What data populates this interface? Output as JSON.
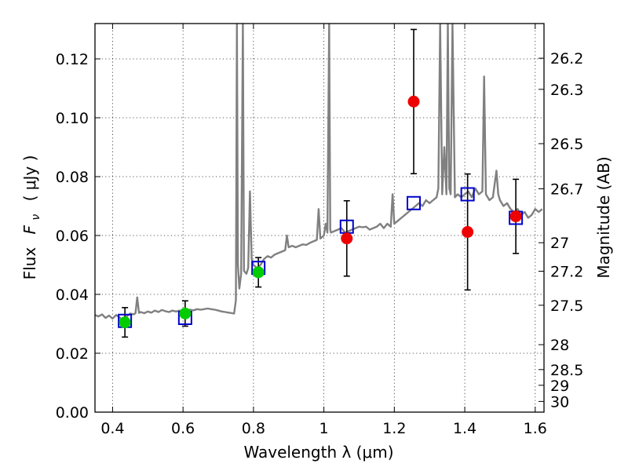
{
  "chart_data": {
    "type": "scatter",
    "xlabel": "Wavelength  λ (μm)",
    "ylabel_main": "Flux",
    "ylabel_symbol": "F",
    "ylabel_subscript": "ν",
    "ylabel_unit": "( μJy )",
    "y2label": "Magnitude (AB)",
    "xlim": [
      0.35,
      1.625
    ],
    "ylim": [
      0.0,
      0.132
    ],
    "grid": true,
    "x_ticks": [
      {
        "value": 0.4,
        "label": "0.4"
      },
      {
        "value": 0.6,
        "label": "0.6"
      },
      {
        "value": 0.8,
        "label": "0.8"
      },
      {
        "value": 1.0,
        "label": "1"
      },
      {
        "value": 1.2,
        "label": "1.2"
      },
      {
        "value": 1.4,
        "label": "1.4"
      },
      {
        "value": 1.6,
        "label": "1.6"
      }
    ],
    "y_ticks": [
      {
        "value": 0.0,
        "label": "0.00"
      },
      {
        "value": 0.02,
        "label": "0.02"
      },
      {
        "value": 0.04,
        "label": "0.04"
      },
      {
        "value": 0.06,
        "label": "0.06"
      },
      {
        "value": 0.08,
        "label": "0.08"
      },
      {
        "value": 0.1,
        "label": "0.10"
      },
      {
        "value": 0.12,
        "label": "0.12"
      }
    ],
    "mag_ticks": [
      {
        "value": 26.2,
        "label": "26.2"
      },
      {
        "value": 26.3,
        "label": "26.3"
      },
      {
        "value": 26.5,
        "label": "26.5"
      },
      {
        "value": 26.7,
        "label": "26.7"
      },
      {
        "value": 27.0,
        "label": "27"
      },
      {
        "value": 27.2,
        "label": "27.2"
      },
      {
        "value": 27.5,
        "label": "27.5"
      },
      {
        "value": 28.0,
        "label": "28"
      },
      {
        "value": 28.5,
        "label": "28.5"
      },
      {
        "value": 29.0,
        "label": "29"
      },
      {
        "value": 30.0,
        "label": "30"
      }
    ],
    "model_spectrum": {
      "color": "#808080",
      "points": [
        [
          0.35,
          0.033
        ],
        [
          0.36,
          0.0325
        ],
        [
          0.37,
          0.0332
        ],
        [
          0.38,
          0.032
        ],
        [
          0.39,
          0.0328
        ],
        [
          0.4,
          0.0318
        ],
        [
          0.41,
          0.033
        ],
        [
          0.42,
          0.0322
        ],
        [
          0.43,
          0.0305
        ],
        [
          0.44,
          0.0325
        ],
        [
          0.45,
          0.0335
        ],
        [
          0.46,
          0.0332
        ],
        [
          0.465,
          0.0336
        ],
        [
          0.47,
          0.039
        ],
        [
          0.475,
          0.0337
        ],
        [
          0.48,
          0.034
        ],
        [
          0.49,
          0.0336
        ],
        [
          0.5,
          0.0342
        ],
        [
          0.51,
          0.0338
        ],
        [
          0.52,
          0.0345
        ],
        [
          0.53,
          0.034
        ],
        [
          0.54,
          0.0347
        ],
        [
          0.55,
          0.0343
        ],
        [
          0.56,
          0.034
        ],
        [
          0.57,
          0.0345
        ],
        [
          0.58,
          0.0342
        ],
        [
          0.59,
          0.0345
        ],
        [
          0.6,
          0.033
        ],
        [
          0.61,
          0.0345
        ],
        [
          0.62,
          0.0348
        ],
        [
          0.63,
          0.0346
        ],
        [
          0.64,
          0.035
        ],
        [
          0.65,
          0.0348
        ],
        [
          0.66,
          0.035
        ],
        [
          0.67,
          0.0352
        ],
        [
          0.68,
          0.035
        ],
        [
          0.69,
          0.0348
        ],
        [
          0.7,
          0.0345
        ],
        [
          0.71,
          0.0342
        ],
        [
          0.72,
          0.034
        ],
        [
          0.73,
          0.0338
        ],
        [
          0.74,
          0.0336
        ],
        [
          0.745,
          0.0335
        ],
        [
          0.75,
          0.038
        ],
        [
          0.753,
          0.132
        ],
        [
          0.756,
          0.05
        ],
        [
          0.76,
          0.042
        ],
        [
          0.765,
          0.047
        ],
        [
          0.77,
          0.132
        ],
        [
          0.773,
          0.048
        ],
        [
          0.78,
          0.047
        ],
        [
          0.785,
          0.049
        ],
        [
          0.79,
          0.075
        ],
        [
          0.795,
          0.052
        ],
        [
          0.8,
          0.05
        ],
        [
          0.81,
          0.049
        ],
        [
          0.82,
          0.05
        ],
        [
          0.83,
          0.052
        ],
        [
          0.84,
          0.053
        ],
        [
          0.85,
          0.0525
        ],
        [
          0.86,
          0.0535
        ],
        [
          0.87,
          0.054
        ],
        [
          0.88,
          0.0545
        ],
        [
          0.89,
          0.055
        ],
        [
          0.895,
          0.06
        ],
        [
          0.9,
          0.056
        ],
        [
          0.91,
          0.0565
        ],
        [
          0.92,
          0.056
        ],
        [
          0.93,
          0.0565
        ],
        [
          0.94,
          0.057
        ],
        [
          0.95,
          0.0568
        ],
        [
          0.96,
          0.0575
        ],
        [
          0.97,
          0.058
        ],
        [
          0.98,
          0.0585
        ],
        [
          0.985,
          0.069
        ],
        [
          0.99,
          0.059
        ],
        [
          1.0,
          0.06
        ],
        [
          1.005,
          0.064
        ],
        [
          1.01,
          0.061
        ],
        [
          1.015,
          0.132
        ],
        [
          1.018,
          0.062
        ],
        [
          1.02,
          0.061
        ],
        [
          1.03,
          0.0615
        ],
        [
          1.04,
          0.062
        ],
        [
          1.05,
          0.0625
        ],
        [
          1.06,
          0.061
        ],
        [
          1.07,
          0.0615
        ],
        [
          1.08,
          0.062
        ],
        [
          1.09,
          0.0625
        ],
        [
          1.1,
          0.063
        ],
        [
          1.11,
          0.0628
        ],
        [
          1.12,
          0.063
        ],
        [
          1.13,
          0.062
        ],
        [
          1.14,
          0.0625
        ],
        [
          1.15,
          0.063
        ],
        [
          1.16,
          0.064
        ],
        [
          1.17,
          0.0625
        ],
        [
          1.18,
          0.064
        ],
        [
          1.19,
          0.063
        ],
        [
          1.195,
          0.074
        ],
        [
          1.2,
          0.064
        ],
        [
          1.21,
          0.065
        ],
        [
          1.22,
          0.066
        ],
        [
          1.23,
          0.067
        ],
        [
          1.24,
          0.068
        ],
        [
          1.25,
          0.069
        ],
        [
          1.26,
          0.07
        ],
        [
          1.27,
          0.071
        ],
        [
          1.28,
          0.07
        ],
        [
          1.29,
          0.072
        ],
        [
          1.3,
          0.071
        ],
        [
          1.31,
          0.072
        ],
        [
          1.32,
          0.073
        ],
        [
          1.325,
          0.076
        ],
        [
          1.33,
          0.132
        ],
        [
          1.336,
          0.074
        ],
        [
          1.342,
          0.09
        ],
        [
          1.348,
          0.074
        ],
        [
          1.352,
          0.132
        ],
        [
          1.356,
          0.076
        ],
        [
          1.36,
          0.074
        ],
        [
          1.365,
          0.132
        ],
        [
          1.372,
          0.073
        ],
        [
          1.38,
          0.074
        ],
        [
          1.39,
          0.073
        ],
        [
          1.4,
          0.074
        ],
        [
          1.41,
          0.075
        ],
        [
          1.42,
          0.073
        ],
        [
          1.43,
          0.076
        ],
        [
          1.44,
          0.074
        ],
        [
          1.45,
          0.075
        ],
        [
          1.455,
          0.114
        ],
        [
          1.46,
          0.074
        ],
        [
          1.47,
          0.072
        ],
        [
          1.48,
          0.073
        ],
        [
          1.49,
          0.082
        ],
        [
          1.495,
          0.074
        ],
        [
          1.5,
          0.072
        ],
        [
          1.51,
          0.07
        ],
        [
          1.52,
          0.071
        ],
        [
          1.53,
          0.069
        ],
        [
          1.54,
          0.068
        ],
        [
          1.55,
          0.069
        ],
        [
          1.56,
          0.067
        ],
        [
          1.57,
          0.068
        ],
        [
          1.58,
          0.066
        ],
        [
          1.59,
          0.067
        ],
        [
          1.6,
          0.069
        ],
        [
          1.61,
          0.068
        ],
        [
          1.62,
          0.069
        ]
      ]
    },
    "model_photometry": {
      "marker": "open-square",
      "color": "#0000cc",
      "points": [
        {
          "x": 0.435,
          "y": 0.031
        },
        {
          "x": 0.606,
          "y": 0.032
        },
        {
          "x": 0.814,
          "y": 0.049
        },
        {
          "x": 1.065,
          "y": 0.063
        },
        {
          "x": 1.255,
          "y": 0.071
        },
        {
          "x": 1.408,
          "y": 0.074
        },
        {
          "x": 1.545,
          "y": 0.066
        }
      ]
    },
    "observed_optical": {
      "marker": "filled-circle",
      "color": "#00cc00",
      "points": [
        {
          "x": 0.435,
          "y": 0.0305,
          "err": 0.005
        },
        {
          "x": 0.606,
          "y": 0.0335,
          "err": 0.0043
        },
        {
          "x": 0.814,
          "y": 0.0475,
          "err": 0.005
        }
      ]
    },
    "observed_nir": {
      "marker": "filled-circle",
      "color": "#ee0000",
      "points": [
        {
          "x": 1.065,
          "y": 0.059,
          "err": 0.0128
        },
        {
          "x": 1.255,
          "y": 0.1055,
          "err": 0.0245
        },
        {
          "x": 1.408,
          "y": 0.0612,
          "err": 0.0197
        },
        {
          "x": 1.545,
          "y": 0.0665,
          "err": 0.0126
        }
      ]
    }
  }
}
